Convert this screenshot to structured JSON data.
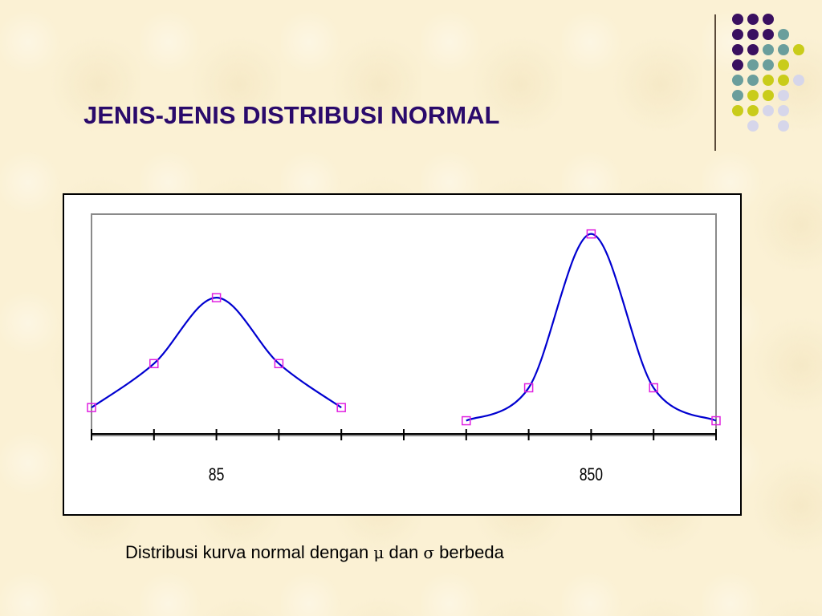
{
  "slide": {
    "title": "JENIS-JENIS DISTRIBUSI NORMAL",
    "caption": {
      "text1": "Distribusi kurva normal dengan ",
      "mu": "μ",
      "text2": " dan ",
      "sigma": "σ",
      "text3": " berbeda"
    }
  },
  "decor": {
    "dot_colors": {
      "purple": "#3a1060",
      "teal": "#6a9e9c",
      "lime": "#c9cc1a",
      "lavender": "#d6d6ea"
    },
    "dot_grid": [
      [
        "purple",
        "purple",
        "purple",
        null,
        null
      ],
      [
        "purple",
        "purple",
        "purple",
        "teal",
        null
      ],
      [
        "purple",
        "purple",
        "teal",
        "teal",
        "lime"
      ],
      [
        "purple",
        "teal",
        "teal",
        "lime",
        null
      ],
      [
        "teal",
        "teal",
        "lime",
        "lime",
        "lavender"
      ],
      [
        "teal",
        "lime",
        "lime",
        "lavender",
        null
      ],
      [
        "lime",
        "lime",
        "lavender",
        "lavender",
        null
      ],
      [
        null,
        "lavender",
        null,
        "lavender",
        null
      ]
    ]
  },
  "chart_data": {
    "type": "line",
    "title": "",
    "xlabel": "",
    "ylabel": "",
    "x_ticks_count": 11,
    "x_tick_labels": [
      {
        "tick": 2,
        "label": "85"
      },
      {
        "tick": 8,
        "label": "850"
      }
    ],
    "curve_color": "#0000d0",
    "marker_color": "#e020e0",
    "ylim": [
      0,
      1
    ],
    "series": [
      {
        "markers": [
          [
            0,
            0.12
          ],
          [
            1,
            0.32
          ],
          [
            2,
            0.62
          ],
          [
            3,
            0.32
          ],
          [
            4,
            0.12
          ]
        ]
      },
      {
        "markers": [
          [
            6,
            0.06
          ],
          [
            7,
            0.21
          ],
          [
            8,
            0.91
          ],
          [
            9,
            0.21
          ],
          [
            10,
            0.06
          ]
        ]
      }
    ]
  }
}
